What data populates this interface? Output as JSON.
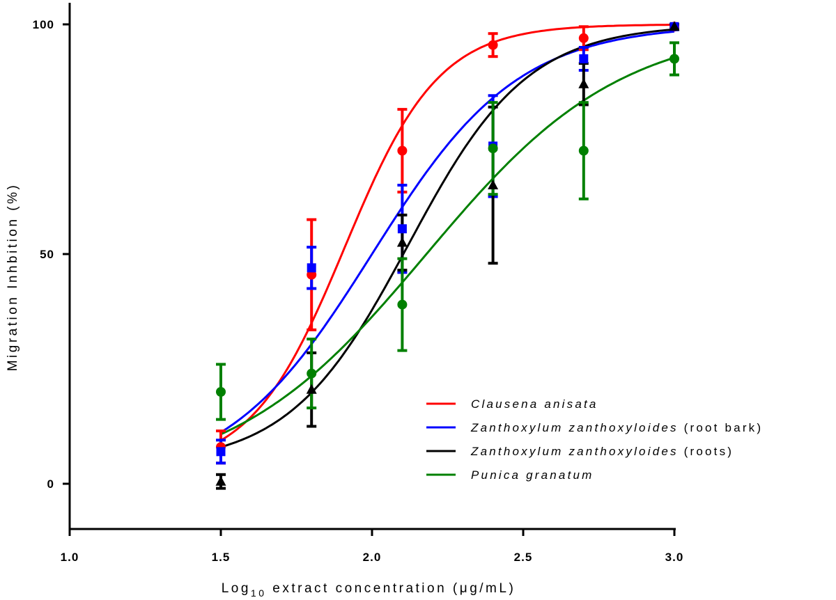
{
  "chart_data": {
    "type": "scatter",
    "title": "",
    "xlabel": "Log",
    "xlabel_subscript": "10",
    "xlabel_rest": " extract concentration (μg/mL)",
    "ylabel": "Migration Inhbition (%)",
    "xlim": [
      1.0,
      3.0
    ],
    "ylim": [
      -10,
      105
    ],
    "xticks": [
      1.0,
      1.5,
      2.0,
      2.5,
      3.0
    ],
    "xtick_labels": [
      "1.0",
      "1.5",
      "2.0",
      "2.5",
      "3.0"
    ],
    "yticks": [
      0,
      50,
      100
    ],
    "ytick_labels": [
      "0",
      "50",
      "100"
    ],
    "grid": false,
    "legend_position": "bottom-right",
    "x": [
      1.5,
      1.8,
      2.1,
      2.4,
      2.7,
      3.0
    ],
    "series": [
      {
        "name": "Clausena anisata",
        "name_italic": "Clausena anisata",
        "name_suffix": "",
        "color": "#ff0000",
        "marker": "circle",
        "y": [
          8,
          45.5,
          72.5,
          95.5,
          97,
          99.5
        ],
        "err": [
          3.5,
          12,
          9,
          2.5,
          2.5,
          0.5
        ],
        "fit": {
          "bottom": 3,
          "top": 100,
          "logec50": 1.91,
          "hill": 2.8
        }
      },
      {
        "name": "Zanthoxylum zanthoxyloides (root bark)",
        "name_italic": "Zanthoxylum zanthoxyloides",
        "name_suffix": " (root bark)",
        "color": "#0000ff",
        "marker": "square",
        "y": [
          7,
          47,
          55.5,
          73.5,
          92.5,
          99.5
        ],
        "err": [
          2.5,
          4.5,
          9.5,
          11,
          2.5,
          0.5
        ],
        "fit": {
          "bottom": 0,
          "top": 100,
          "logec50": 2.0,
          "hill": 1.8
        }
      },
      {
        "name": "Zanthoxylum zanthoxyloides (roots)",
        "name_italic": "Zanthoxylum zanthoxyloides",
        "name_suffix": " (roots)",
        "color": "#000000",
        "marker": "triangle",
        "y": [
          0.5,
          20.5,
          52.5,
          65,
          87,
          99.5
        ],
        "err": [
          1.5,
          8,
          6,
          17,
          4.5,
          0.5
        ],
        "fit": {
          "bottom": 4,
          "top": 100,
          "logec50": 2.12,
          "hill": 2.2
        }
      },
      {
        "name": "Punica granatum",
        "name_italic": "Punica granatum",
        "name_suffix": "",
        "color": "#008000",
        "marker": "circle",
        "y": [
          20,
          24,
          39,
          73,
          72.5,
          92.5
        ],
        "err": [
          6,
          7.5,
          10,
          10,
          10.5,
          3.5
        ],
        "fit": {
          "bottom": 0,
          "top": 100,
          "logec50": 2.18,
          "hill": 1.35
        }
      }
    ]
  }
}
